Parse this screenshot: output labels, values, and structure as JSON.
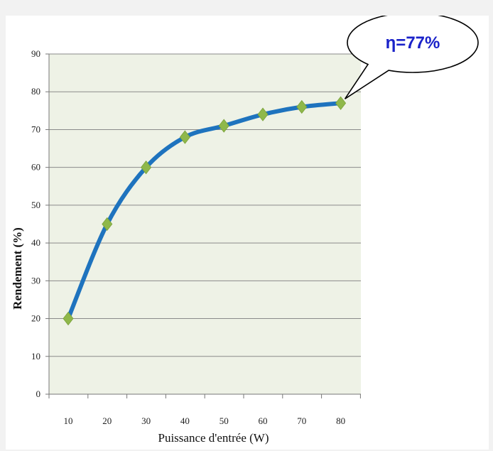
{
  "chart_data": {
    "type": "line",
    "title": "",
    "xlabel": "Puissance d'entrée  (W)",
    "ylabel": "Rendement  (%)",
    "x": [
      10,
      20,
      30,
      40,
      50,
      60,
      70,
      80
    ],
    "series": [
      {
        "values": [
          20,
          45,
          60,
          68,
          71,
          74,
          76,
          77
        ],
        "color": "#1e73be",
        "marker": "diamond",
        "marker_color": "#8fb84a"
      }
    ],
    "x_ticks": [
      "10",
      "20",
      "30",
      "40",
      "50",
      "60",
      "70",
      "80"
    ],
    "y_ticks": [
      "0",
      "10",
      "20",
      "30",
      "40",
      "50",
      "60",
      "70",
      "80",
      "90"
    ],
    "ylim": [
      0,
      90
    ],
    "grid": "horizontal",
    "plot_background": "#eef2e6",
    "annotation": {
      "text": "η=77%",
      "color": "#1a22c9",
      "points_to_x": 80,
      "points_to_y": 77
    }
  }
}
